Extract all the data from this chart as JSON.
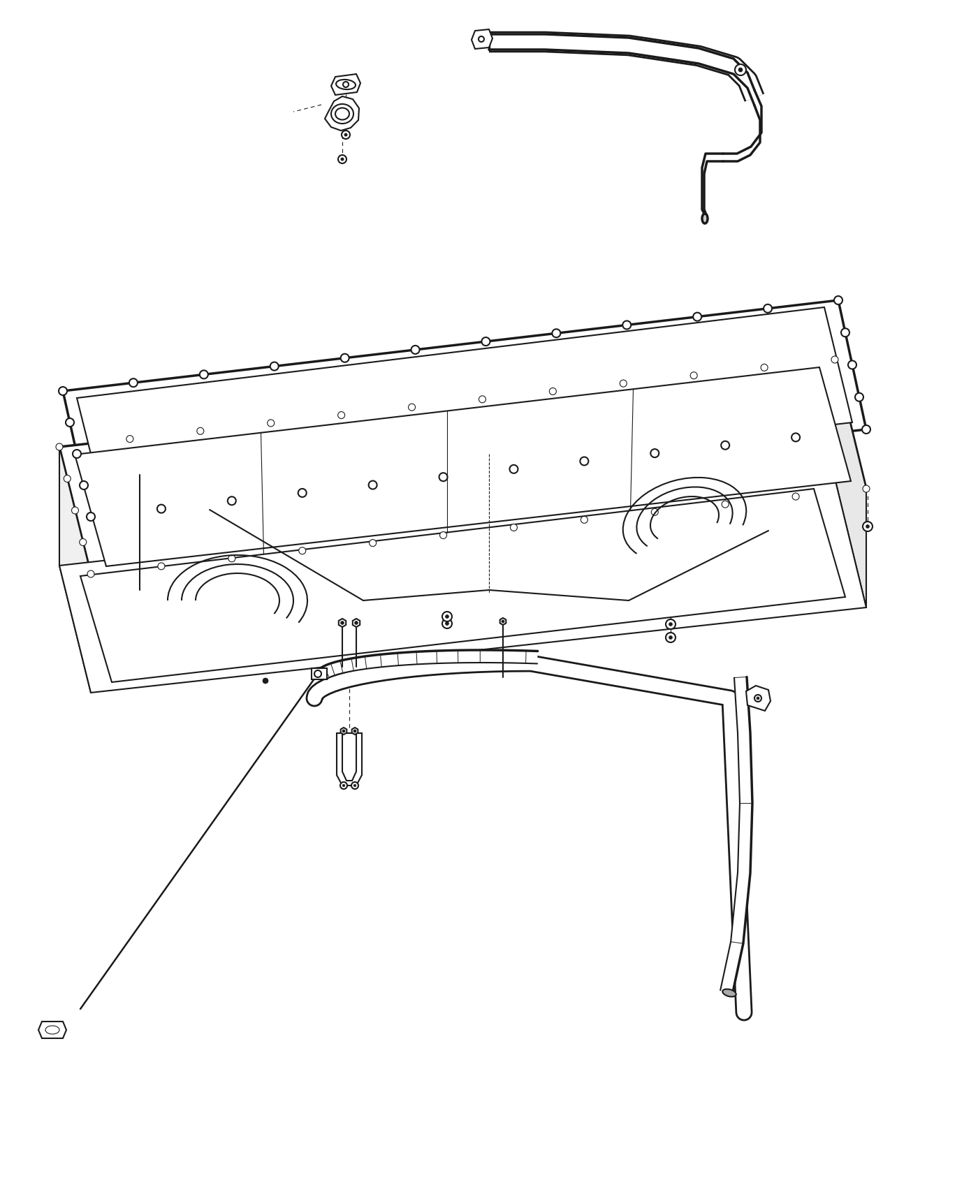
{
  "bg_color": "#ffffff",
  "line_color": "#1a1a1a",
  "lw": 1.5,
  "lw_thick": 2.5,
  "lw_thin": 0.8,
  "fig_width": 14.0,
  "fig_height": 17.0
}
